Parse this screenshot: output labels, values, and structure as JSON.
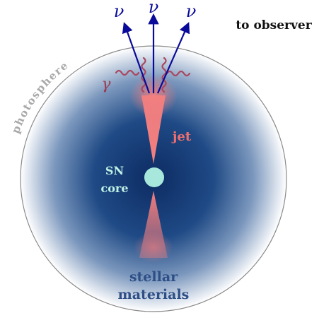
{
  "labels": {
    "to_observer": "to observer",
    "photosphere": "photosphere",
    "jet": "jet",
    "core_line1": "SN",
    "core_line2": "core",
    "stellar_line1": "stellar",
    "stellar_line2": "materials",
    "neutrino": "ν",
    "gamma": "γ"
  },
  "colors": {
    "star_core": "#0d2b63",
    "star_edge": "#ffffff",
    "outline": "#8a8a8a",
    "photosphere_text": "#a9a9a9",
    "jet": "#f47f7f",
    "jet_text": "#ef6f6f",
    "core_fill": "#a8e7dc",
    "core_text": "#bff0e4",
    "neutrino_arrow": "#0a0a9a",
    "gamma_wave": "#a84860",
    "gamma_text": "#9a3b50",
    "stellar_text": "#2e4f86",
    "observer_text": "#111111"
  }
}
